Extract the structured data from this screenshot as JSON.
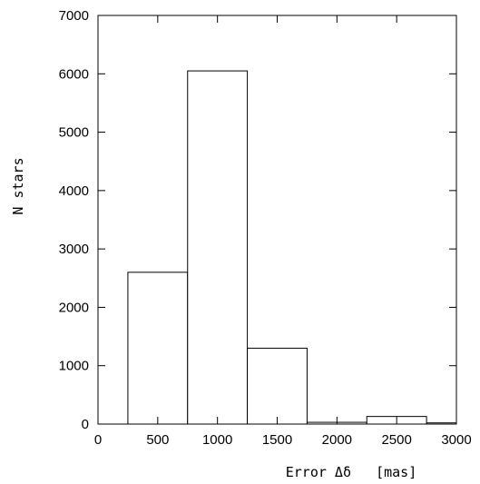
{
  "chart_data": {
    "type": "bar",
    "bin_edges": [
      250,
      750,
      1250,
      1750,
      2250,
      2750,
      3000
    ],
    "values": [
      2600,
      6050,
      1300,
      30,
      130,
      20
    ],
    "xlabel": "Error Δδ   [mas]",
    "ylabel": "N stars",
    "xlim": [
      0,
      3000
    ],
    "ylim": [
      0,
      7000
    ],
    "xticks": [
      "0",
      "500",
      "1000",
      "1500",
      "2000",
      "2500",
      "3000"
    ],
    "yticks": [
      "0",
      "1000",
      "2000",
      "3000",
      "4000",
      "5000",
      "6000",
      "7000"
    ],
    "grid": false,
    "legend": "none"
  }
}
